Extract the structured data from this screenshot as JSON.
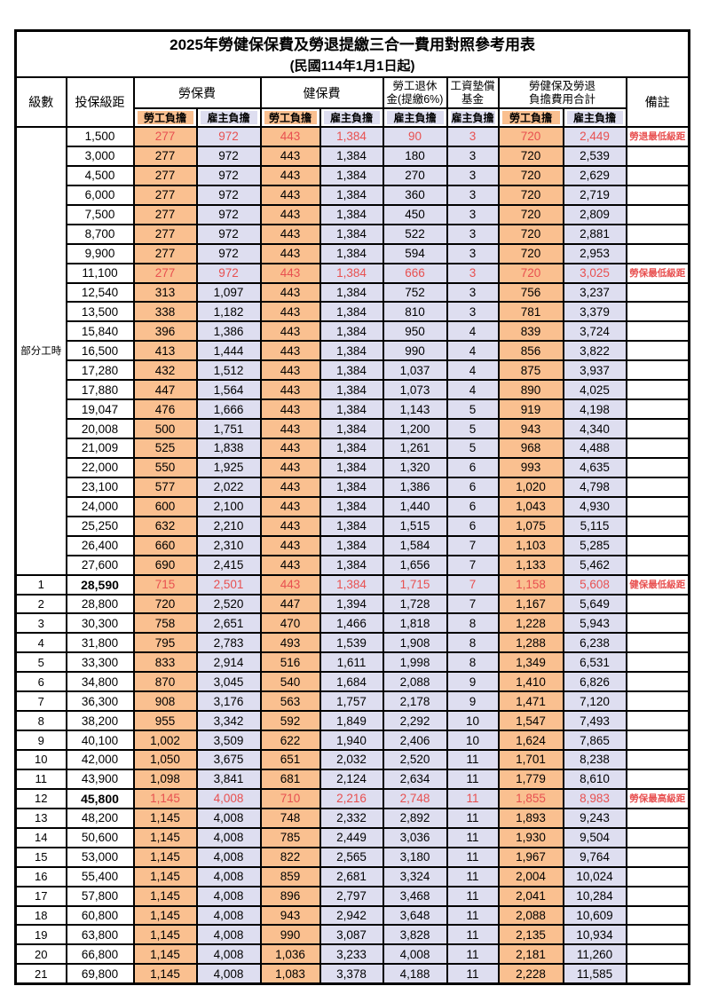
{
  "title": "2025年勞健保保費及勞退提繳三合一費用對照參考用表",
  "subtitle": "(民國114年1月1日起)",
  "header": {
    "level": "級數",
    "bracket": "投保級距",
    "labor_fee": "勞保費",
    "health_fee": "健保費",
    "pension_line1": "勞工退休",
    "pension_line2": "金(提繳6%)",
    "wage_fund_line1": "工資墊償",
    "wage_fund_line2": "基金",
    "total_line1": "勞健保及勞退",
    "total_line2": "負擔費用合計",
    "remark": "備註",
    "employee_label": "勞工負擔",
    "employer_label": "雇主負擔"
  },
  "part_time_label": "部分工時",
  "colors": {
    "employee_bg": "#FAC090",
    "employer_bg": "#DEDEF0",
    "highlight_red": "#E85050"
  },
  "rows": [
    {
      "level": "",
      "bracket": "1,500",
      "values": [
        "277",
        "972",
        "443",
        "1,384",
        "90",
        "3",
        "720",
        "2,449"
      ],
      "remark": "勞退最低級距",
      "red": true
    },
    {
      "level": "",
      "bracket": "3,000",
      "values": [
        "277",
        "972",
        "443",
        "1,384",
        "180",
        "3",
        "720",
        "2,539"
      ]
    },
    {
      "level": "",
      "bracket": "4,500",
      "values": [
        "277",
        "972",
        "443",
        "1,384",
        "270",
        "3",
        "720",
        "2,629"
      ]
    },
    {
      "level": "",
      "bracket": "6,000",
      "values": [
        "277",
        "972",
        "443",
        "1,384",
        "360",
        "3",
        "720",
        "2,719"
      ]
    },
    {
      "level": "",
      "bracket": "7,500",
      "values": [
        "277",
        "972",
        "443",
        "1,384",
        "450",
        "3",
        "720",
        "2,809"
      ]
    },
    {
      "level": "",
      "bracket": "8,700",
      "values": [
        "277",
        "972",
        "443",
        "1,384",
        "522",
        "3",
        "720",
        "2,881"
      ]
    },
    {
      "level": "",
      "bracket": "9,900",
      "values": [
        "277",
        "972",
        "443",
        "1,384",
        "594",
        "3",
        "720",
        "2,953"
      ]
    },
    {
      "level": "",
      "bracket": "11,100",
      "values": [
        "277",
        "972",
        "443",
        "1,384",
        "666",
        "3",
        "720",
        "3,025"
      ],
      "remark": "勞保最低級距",
      "red": true
    },
    {
      "level": "",
      "bracket": "12,540",
      "values": [
        "313",
        "1,097",
        "443",
        "1,384",
        "752",
        "3",
        "756",
        "3,237"
      ]
    },
    {
      "level": "",
      "bracket": "13,500",
      "values": [
        "338",
        "1,182",
        "443",
        "1,384",
        "810",
        "3",
        "781",
        "3,379"
      ]
    },
    {
      "level": "",
      "bracket": "15,840",
      "values": [
        "396",
        "1,386",
        "443",
        "1,384",
        "950",
        "4",
        "839",
        "3,724"
      ]
    },
    {
      "level": "",
      "bracket": "16,500",
      "values": [
        "413",
        "1,444",
        "443",
        "1,384",
        "990",
        "4",
        "856",
        "3,822"
      ]
    },
    {
      "level": "",
      "bracket": "17,280",
      "values": [
        "432",
        "1,512",
        "443",
        "1,384",
        "1,037",
        "4",
        "875",
        "3,937"
      ]
    },
    {
      "level": "",
      "bracket": "17,880",
      "values": [
        "447",
        "1,564",
        "443",
        "1,384",
        "1,073",
        "4",
        "890",
        "4,025"
      ]
    },
    {
      "level": "",
      "bracket": "19,047",
      "values": [
        "476",
        "1,666",
        "443",
        "1,384",
        "1,143",
        "5",
        "919",
        "4,198"
      ]
    },
    {
      "level": "",
      "bracket": "20,008",
      "values": [
        "500",
        "1,751",
        "443",
        "1,384",
        "1,200",
        "5",
        "943",
        "4,340"
      ]
    },
    {
      "level": "",
      "bracket": "21,009",
      "values": [
        "525",
        "1,838",
        "443",
        "1,384",
        "1,261",
        "5",
        "968",
        "4,488"
      ]
    },
    {
      "level": "",
      "bracket": "22,000",
      "values": [
        "550",
        "1,925",
        "443",
        "1,384",
        "1,320",
        "6",
        "993",
        "4,635"
      ]
    },
    {
      "level": "",
      "bracket": "23,100",
      "values": [
        "577",
        "2,022",
        "443",
        "1,384",
        "1,386",
        "6",
        "1,020",
        "4,798"
      ]
    },
    {
      "level": "",
      "bracket": "24,000",
      "values": [
        "600",
        "2,100",
        "443",
        "1,384",
        "1,440",
        "6",
        "1,043",
        "4,930"
      ]
    },
    {
      "level": "",
      "bracket": "25,250",
      "values": [
        "632",
        "2,210",
        "443",
        "1,384",
        "1,515",
        "6",
        "1,075",
        "5,115"
      ]
    },
    {
      "level": "",
      "bracket": "26,400",
      "values": [
        "660",
        "2,310",
        "443",
        "1,384",
        "1,584",
        "7",
        "1,103",
        "5,285"
      ]
    },
    {
      "level": "",
      "bracket": "27,600",
      "values": [
        "690",
        "2,415",
        "443",
        "1,384",
        "1,656",
        "7",
        "1,133",
        "5,462"
      ]
    },
    {
      "level": "1",
      "bracket": "28,590",
      "values": [
        "715",
        "2,501",
        "443",
        "1,384",
        "1,715",
        "7",
        "1,158",
        "5,608"
      ],
      "remark": "健保最低級距",
      "red": true,
      "bold": true
    },
    {
      "level": "2",
      "bracket": "28,800",
      "values": [
        "720",
        "2,520",
        "447",
        "1,394",
        "1,728",
        "7",
        "1,167",
        "5,649"
      ]
    },
    {
      "level": "3",
      "bracket": "30,300",
      "values": [
        "758",
        "2,651",
        "470",
        "1,466",
        "1,818",
        "8",
        "1,228",
        "5,943"
      ]
    },
    {
      "level": "4",
      "bracket": "31,800",
      "values": [
        "795",
        "2,783",
        "493",
        "1,539",
        "1,908",
        "8",
        "1,288",
        "6,238"
      ]
    },
    {
      "level": "5",
      "bracket": "33,300",
      "values": [
        "833",
        "2,914",
        "516",
        "1,611",
        "1,998",
        "8",
        "1,349",
        "6,531"
      ]
    },
    {
      "level": "6",
      "bracket": "34,800",
      "values": [
        "870",
        "3,045",
        "540",
        "1,684",
        "2,088",
        "9",
        "1,410",
        "6,826"
      ]
    },
    {
      "level": "7",
      "bracket": "36,300",
      "values": [
        "908",
        "3,176",
        "563",
        "1,757",
        "2,178",
        "9",
        "1,471",
        "7,120"
      ]
    },
    {
      "level": "8",
      "bracket": "38,200",
      "values": [
        "955",
        "3,342",
        "592",
        "1,849",
        "2,292",
        "10",
        "1,547",
        "7,493"
      ]
    },
    {
      "level": "9",
      "bracket": "40,100",
      "values": [
        "1,002",
        "3,509",
        "622",
        "1,940",
        "2,406",
        "10",
        "1,624",
        "7,865"
      ]
    },
    {
      "level": "10",
      "bracket": "42,000",
      "values": [
        "1,050",
        "3,675",
        "651",
        "2,032",
        "2,520",
        "11",
        "1,701",
        "8,238"
      ]
    },
    {
      "level": "11",
      "bracket": "43,900",
      "values": [
        "1,098",
        "3,841",
        "681",
        "2,124",
        "2,634",
        "11",
        "1,779",
        "8,610"
      ]
    },
    {
      "level": "12",
      "bracket": "45,800",
      "values": [
        "1,145",
        "4,008",
        "710",
        "2,216",
        "2,748",
        "11",
        "1,855",
        "8,983"
      ],
      "remark": "勞保最高級距",
      "red": true,
      "bold": true
    },
    {
      "level": "13",
      "bracket": "48,200",
      "values": [
        "1,145",
        "4,008",
        "748",
        "2,332",
        "2,892",
        "11",
        "1,893",
        "9,243"
      ]
    },
    {
      "level": "14",
      "bracket": "50,600",
      "values": [
        "1,145",
        "4,008",
        "785",
        "2,449",
        "3,036",
        "11",
        "1,930",
        "9,504"
      ]
    },
    {
      "level": "15",
      "bracket": "53,000",
      "values": [
        "1,145",
        "4,008",
        "822",
        "2,565",
        "3,180",
        "11",
        "1,967",
        "9,764"
      ]
    },
    {
      "level": "16",
      "bracket": "55,400",
      "values": [
        "1,145",
        "4,008",
        "859",
        "2,681",
        "3,324",
        "11",
        "2,004",
        "10,024"
      ]
    },
    {
      "level": "17",
      "bracket": "57,800",
      "values": [
        "1,145",
        "4,008",
        "896",
        "2,797",
        "3,468",
        "11",
        "2,041",
        "10,284"
      ]
    },
    {
      "level": "18",
      "bracket": "60,800",
      "values": [
        "1,145",
        "4,008",
        "943",
        "2,942",
        "3,648",
        "11",
        "2,088",
        "10,609"
      ]
    },
    {
      "level": "19",
      "bracket": "63,800",
      "values": [
        "1,145",
        "4,008",
        "990",
        "3,087",
        "3,828",
        "11",
        "2,135",
        "10,934"
      ]
    },
    {
      "level": "20",
      "bracket": "66,800",
      "values": [
        "1,145",
        "4,008",
        "1,036",
        "3,233",
        "4,008",
        "11",
        "2,181",
        "11,260"
      ]
    },
    {
      "level": "21",
      "bracket": "69,800",
      "values": [
        "1,145",
        "4,008",
        "1,083",
        "3,378",
        "4,188",
        "11",
        "2,228",
        "11,585"
      ]
    }
  ]
}
